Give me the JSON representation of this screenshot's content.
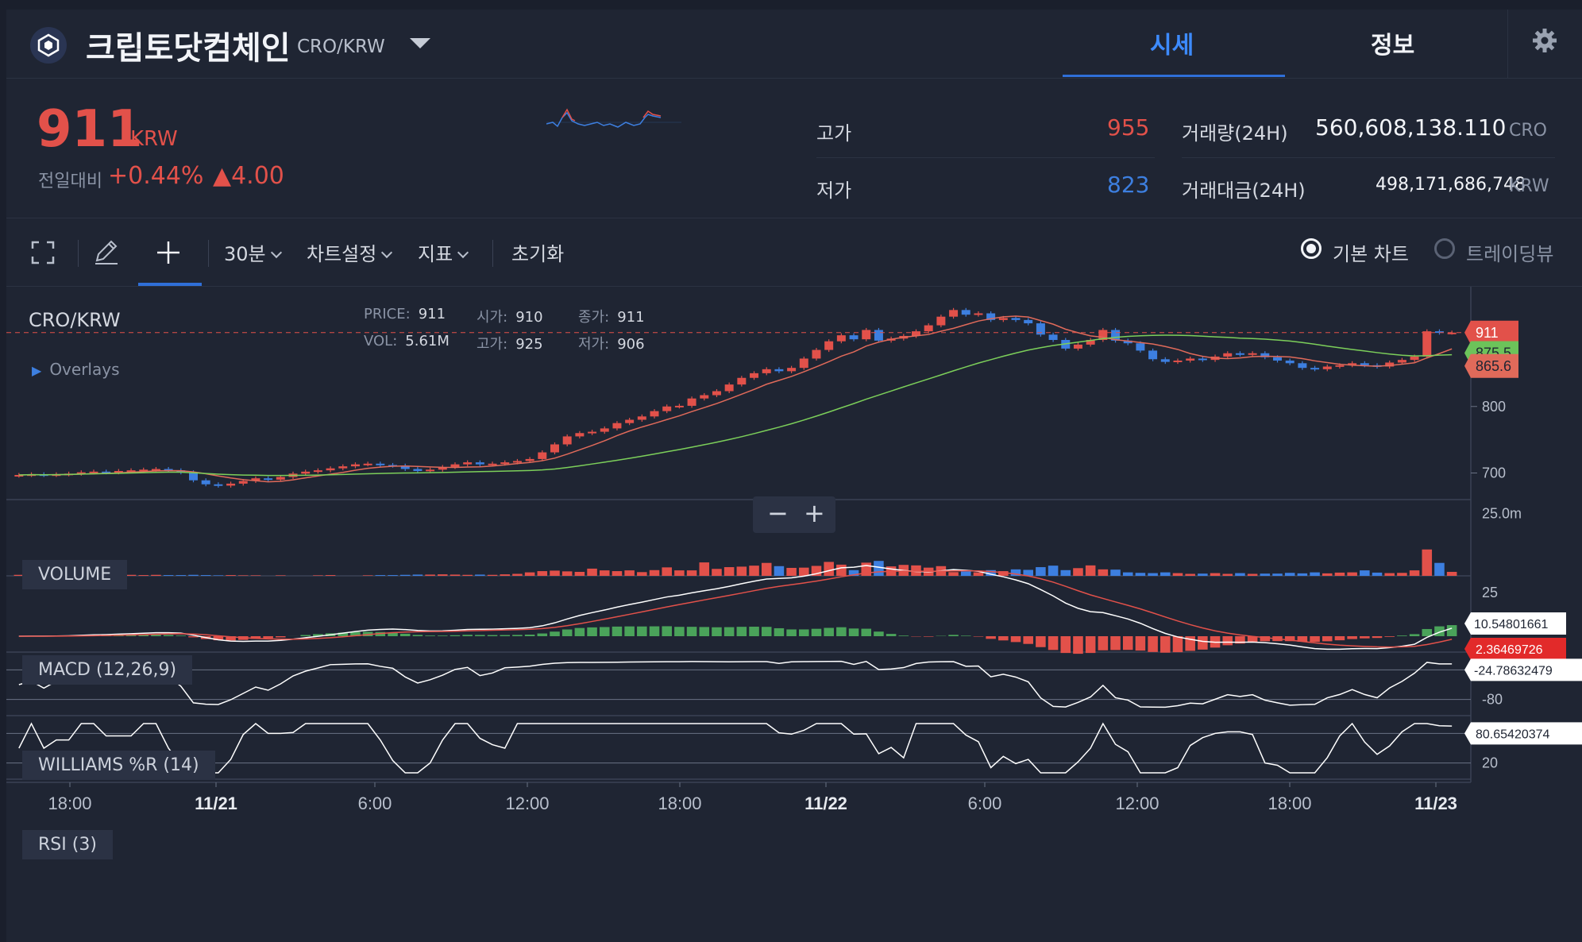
{
  "header": {
    "coin_name": "크립토닷컴체인",
    "pair": "CRO/KRW",
    "tabs": [
      {
        "label": "시세",
        "active": true
      },
      {
        "label": "정보",
        "active": false
      }
    ],
    "icons": {
      "logo": "cro-logo-icon",
      "dropdown": "chevron-down-icon",
      "settings": "gear-icon"
    }
  },
  "summary": {
    "price": "911",
    "unit": "KRW",
    "change_label": "전일대비",
    "change_pct": "+0.44%",
    "change_abs": "▲4.00",
    "high_label": "고가",
    "high": "955",
    "low_label": "저가",
    "low": "823",
    "vol_label": "거래량(24H)",
    "vol": "560,608,138.110",
    "vol_unit": "CRO",
    "amt_label": "거래대금(24H)",
    "amt": "498,171,686,748",
    "amt_unit": "KRW",
    "colors": {
      "up": "#e2514a",
      "down": "#3d7fe0"
    }
  },
  "toolbar": {
    "interval": "30분",
    "chart_settings": "차트설정",
    "indicators": "지표",
    "reset": "초기화",
    "basic_chart": "기본 차트",
    "tradingview": "트레이딩뷰",
    "icons": [
      "fullscreen-icon",
      "pencil-icon",
      "crosshair-icon"
    ]
  },
  "chart_info": {
    "pair": "CRO/KRW",
    "price_label": "PRICE:",
    "price": "911",
    "open_label": "시가:",
    "open": "910",
    "close_label": "종가:",
    "close": "911",
    "vol_label": "VOL:",
    "vol": "5.61M",
    "high_label": "고가:",
    "high": "925",
    "low_label": "저가:",
    "low": "906",
    "overlays": "Overlays"
  },
  "indicator_labels": {
    "volume": "VOLUME",
    "macd": "MACD (12,26,9)",
    "williams": "WILLIAMS %R (14)",
    "rsi": "RSI (3)"
  },
  "zoom": {
    "minus": "−",
    "plus": "+"
  },
  "chart_data": {
    "type": "candlestick",
    "x_labels": [
      "18:00",
      "11/21",
      "6:00",
      "12:00",
      "18:00",
      "11/22",
      "6:00",
      "12:00",
      "18:00",
      "11/23"
    ],
    "price_ticks": [
      "800",
      "700"
    ],
    "price_range": [
      660,
      980
    ],
    "last_price_tag": "911",
    "ma_tags": [
      "875.5",
      "865.6"
    ],
    "closes": [
      697,
      698,
      697,
      698,
      699,
      701,
      702,
      701,
      703,
      704,
      705,
      706,
      704,
      701,
      689,
      683,
      681,
      684,
      688,
      692,
      690,
      694,
      699,
      702,
      704,
      707,
      710,
      713,
      714,
      712,
      711,
      706,
      703,
      705,
      709,
      713,
      716,
      713,
      714,
      716,
      718,
      721,
      731,
      743,
      755,
      760,
      762,
      767,
      775,
      780,
      785,
      793,
      800,
      801,
      812,
      817,
      823,
      833,
      843,
      850,
      856,
      853,
      858,
      872,
      885,
      898,
      907,
      901,
      915,
      899,
      902,
      906,
      913,
      922,
      935,
      945,
      938,
      940,
      930,
      933,
      930,
      925,
      908,
      900,
      887,
      893,
      900,
      915,
      899,
      895,
      884,
      871,
      867,
      869,
      872,
      870,
      875,
      880,
      878,
      880,
      874,
      869,
      865,
      858,
      856,
      860,
      862,
      865,
      862,
      860,
      866,
      870,
      875,
      913,
      911,
      911
    ],
    "volume_range": [
      0,
      30
    ],
    "volume_ticks": [
      "25.0m"
    ],
    "volume": [
      0.4,
      0.4,
      0.3,
      0.4,
      0.6,
      0.7,
      0.6,
      0.5,
      0.4,
      0.4,
      0.3,
      0.4,
      0.3,
      0.3,
      0.4,
      0.3,
      0.2,
      0.3,
      0.2,
      0.2,
      0,
      0.2,
      0,
      0,
      0.2,
      0.3,
      0,
      0,
      0.2,
      0.3,
      0.3,
      0.4,
      0.5,
      0.5,
      0.6,
      0.5,
      0.4,
      0.5,
      0.4,
      0.6,
      0.8,
      1.4,
      1.9,
      2.1,
      1.8,
      1.6,
      2.9,
      2.2,
      1.9,
      2.2,
      1.5,
      2.3,
      3.4,
      2.2,
      2.2,
      5.4,
      2.8,
      3.5,
      3.7,
      4.1,
      5.2,
      3.9,
      3.2,
      3.3,
      4.0,
      5.6,
      4.5,
      2.3,
      5.3,
      6.0,
      3.8,
      4.4,
      4.2,
      3.3,
      3.9,
      1.5,
      1.8,
      1.4,
      2.3,
      1.9,
      2.6,
      2.4,
      3.5,
      4.1,
      2.3,
      3.1,
      4.2,
      2.6,
      2.5,
      1.4,
      1.2,
      1.1,
      1.4,
      1.1,
      0.8,
      0.9,
      1.1,
      0.8,
      1.1,
      0.8,
      0.9,
      0.9,
      1.2,
      1.0,
      1.4,
      1.0,
      1.3,
      1.4,
      2.2,
      1.3,
      1.1,
      1.2,
      2.2,
      10.6,
      5.2,
      1.6
    ],
    "macd_tags": [
      "10.54801661",
      "2.36469726"
    ],
    "macd_ticks": [
      "25"
    ],
    "williams_tag": "-24.78632479",
    "williams_ticks": [
      "-80"
    ],
    "rsi_tag": "80.65420374",
    "rsi_ticks": [
      "20"
    ]
  }
}
